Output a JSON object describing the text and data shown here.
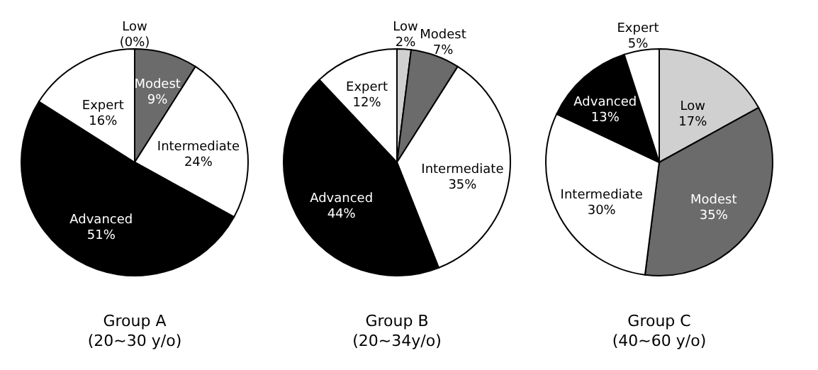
{
  "chart_data": [
    {
      "type": "pie",
      "title": "Group A",
      "subtitle": "(20~30 y/o)",
      "categories": [
        "Low",
        "Modest",
        "Intermediate",
        "Advanced",
        "Expert"
      ],
      "values": [
        0,
        9,
        24,
        51,
        16
      ],
      "value_labels": [
        "(0%)",
        "9%",
        "24%",
        "51%",
        "16%"
      ],
      "colors": [
        "#d0d0d0",
        "#6b6b6b",
        "#ffffff",
        "#000000",
        "#ffffff"
      ]
    },
    {
      "type": "pie",
      "title": "Group B",
      "subtitle": "(20~34y/o)",
      "categories": [
        "Low",
        "Modest",
        "Intermediate",
        "Advanced",
        "Expert"
      ],
      "values": [
        2,
        7,
        35,
        44,
        12
      ],
      "value_labels": [
        "2%",
        "7%",
        "35%",
        "44%",
        "12%"
      ],
      "colors": [
        "#d0d0d0",
        "#6b6b6b",
        "#ffffff",
        "#000000",
        "#ffffff"
      ]
    },
    {
      "type": "pie",
      "title": "Group C",
      "subtitle": "(40~60 y/o)",
      "categories": [
        "Low",
        "Modest",
        "Intermediate",
        "Advanced",
        "Expert"
      ],
      "values": [
        17,
        35,
        30,
        13,
        5
      ],
      "value_labels": [
        "17%",
        "35%",
        "30%",
        "13%",
        "5%"
      ],
      "colors": [
        "#d0d0d0",
        "#6b6b6b",
        "#ffffff",
        "#000000",
        "#ffffff"
      ]
    }
  ]
}
